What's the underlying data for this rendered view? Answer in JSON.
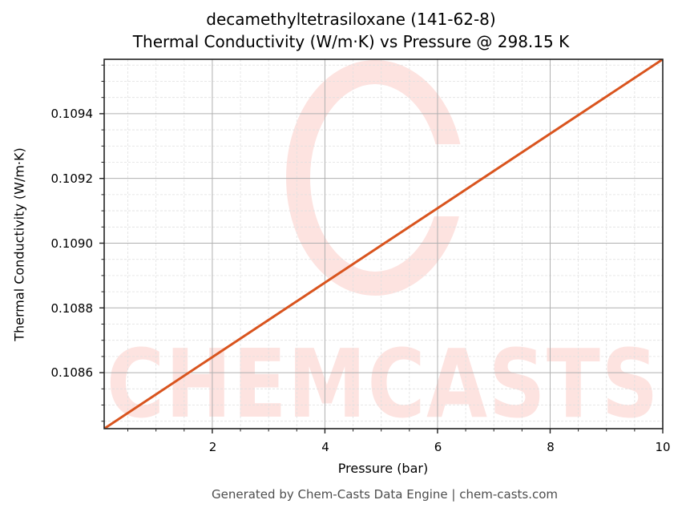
{
  "title": {
    "line1": "decamethyltetrasiloxane (141-62-8)",
    "line2": "Thermal Conductivity (W/m·K) vs Pressure @ 298.15 K"
  },
  "axes": {
    "xlabel": "Pressure (bar)",
    "ylabel": "Thermal Conductivity (W/m·K)",
    "x_ticks": [
      "2",
      "4",
      "6",
      "8",
      "10"
    ],
    "y_ticks": [
      "0.1086",
      "0.1088",
      "0.1090",
      "0.1092",
      "0.1094"
    ]
  },
  "watermark": {
    "text": "CHEMCASTS",
    "color": "#fde3e0"
  },
  "footer": "Generated by Chem-Casts Data Engine | chem-casts.com",
  "colors": {
    "line": "#d9541e",
    "grid_major": "#b0b0b0",
    "grid_minor": "#e0e0e0",
    "axes": "#222222"
  },
  "chart_data": {
    "type": "line",
    "title": "decamethyltetrasiloxane (141-62-8) Thermal Conductivity (W/m·K) vs Pressure @ 298.15 K",
    "xlabel": "Pressure (bar)",
    "ylabel": "Thermal Conductivity (W/m·K)",
    "xlim": [
      0.08,
      10
    ],
    "ylim": [
      0.108427,
      0.109568
    ],
    "x_ticks": [
      2,
      4,
      6,
      8,
      10
    ],
    "y_ticks": [
      0.1086,
      0.1088,
      0.109,
      0.1092,
      0.1094
    ],
    "grid": true,
    "legend": null,
    "series": [
      {
        "name": "Thermal Conductivity",
        "color": "#d9541e",
        "x": [
          0.08,
          1,
          2,
          3,
          4,
          5,
          6,
          7,
          8,
          9,
          10
        ],
        "y": [
          0.108427,
          0.108533,
          0.108648,
          0.108763,
          0.108878,
          0.108993,
          0.109108,
          0.109223,
          0.109338,
          0.109453,
          0.109568
        ]
      }
    ]
  }
}
